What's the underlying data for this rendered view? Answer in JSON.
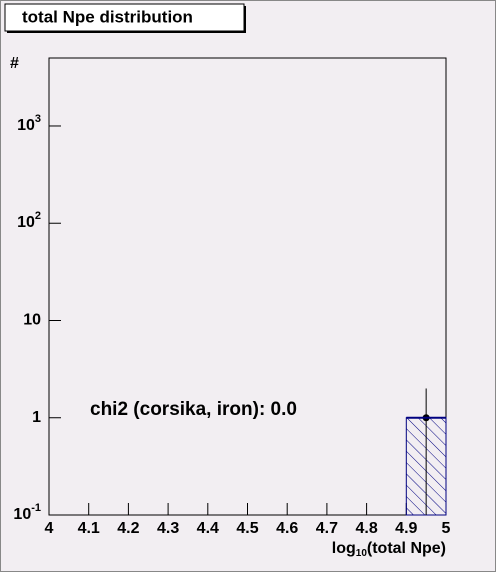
{
  "chart_data": {
    "type": "histogram",
    "title": "total Npe distribution",
    "ylabel": "#",
    "xlabel_parts": [
      "log",
      "10",
      "(total Npe)"
    ],
    "annotation": "chi2 (corsika, iron): 0.0",
    "bins": [
      4.0,
      4.1,
      4.2,
      4.3,
      4.4,
      4.5,
      4.6,
      4.7,
      4.8,
      4.9,
      5.0
    ],
    "values": [
      0,
      0,
      0,
      0,
      0,
      0,
      0,
      0,
      0,
      1
    ],
    "errors": [
      0,
      0,
      0,
      0,
      0,
      0,
      0,
      0,
      0,
      1
    ],
    "color": "#000080",
    "xlim": [
      4,
      5
    ],
    "xticks": [
      4,
      4.1,
      4.2,
      4.3,
      4.4,
      4.5,
      4.6,
      4.7,
      4.8,
      4.9,
      5
    ],
    "ylim": [
      0.1,
      5000
    ],
    "log_y": true,
    "yticks": [
      {
        "value": 0.1,
        "label": "10",
        "exponent": "-1"
      },
      1,
      10,
      {
        "value": 100,
        "label": "10",
        "exponent": "2"
      },
      {
        "value": 1000,
        "label": "10",
        "exponent": "3"
      }
    ]
  }
}
